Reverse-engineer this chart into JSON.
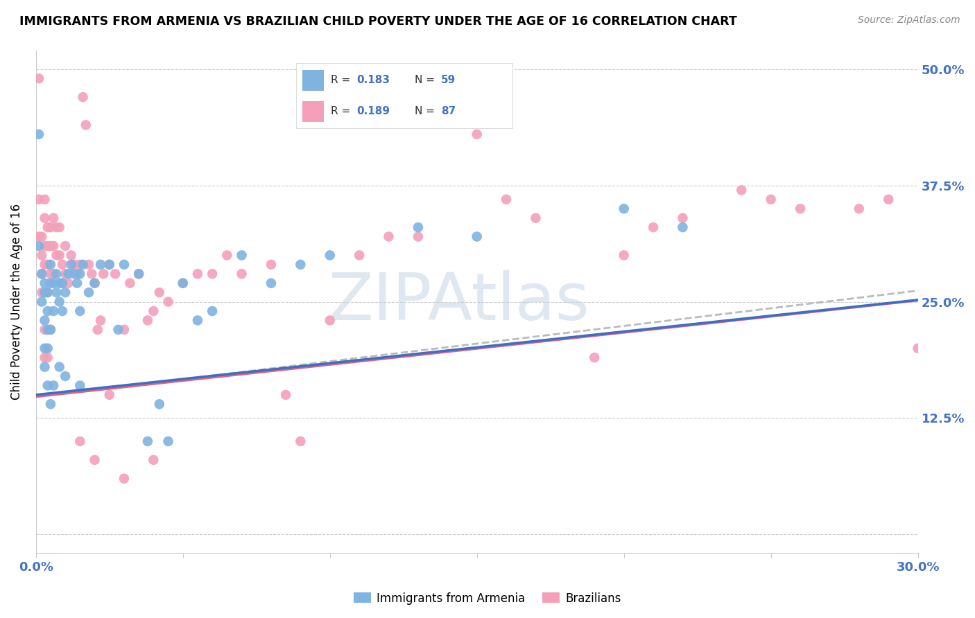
{
  "title": "IMMIGRANTS FROM ARMENIA VS BRAZILIAN CHILD POVERTY UNDER THE AGE OF 16 CORRELATION CHART",
  "source": "Source: ZipAtlas.com",
  "ylabel": "Child Poverty Under the Age of 16",
  "xlim": [
    0.0,
    0.3
  ],
  "ylim": [
    -0.02,
    0.52
  ],
  "color_armenia": "#7fb3e0",
  "color_brazil": "#f4a0ba",
  "color_armenia_line": "#3a6fc4",
  "color_brazil_line": "#e06080",
  "watermark": "ZIPAtlas",
  "watermark_color": "#c8d8e8",
  "legend_r1": "0.183",
  "legend_n1": "59",
  "legend_r2": "0.189",
  "legend_n2": "87",
  "armenia_x": [
    0.001,
    0.001,
    0.002,
    0.002,
    0.003,
    0.003,
    0.003,
    0.003,
    0.004,
    0.004,
    0.004,
    0.004,
    0.005,
    0.005,
    0.005,
    0.006,
    0.006,
    0.007,
    0.007,
    0.008,
    0.008,
    0.009,
    0.009,
    0.01,
    0.011,
    0.012,
    0.013,
    0.014,
    0.015,
    0.015,
    0.016,
    0.018,
    0.02,
    0.022,
    0.025,
    0.028,
    0.03,
    0.035,
    0.038,
    0.042,
    0.045,
    0.05,
    0.055,
    0.06,
    0.07,
    0.08,
    0.09,
    0.1,
    0.13,
    0.15,
    0.2,
    0.22,
    0.003,
    0.004,
    0.005,
    0.006,
    0.008,
    0.01,
    0.015
  ],
  "armenia_y": [
    0.43,
    0.31,
    0.28,
    0.25,
    0.27,
    0.26,
    0.23,
    0.2,
    0.26,
    0.24,
    0.22,
    0.2,
    0.29,
    0.27,
    0.22,
    0.27,
    0.24,
    0.28,
    0.26,
    0.27,
    0.25,
    0.27,
    0.24,
    0.26,
    0.28,
    0.29,
    0.28,
    0.27,
    0.28,
    0.24,
    0.29,
    0.26,
    0.27,
    0.29,
    0.29,
    0.22,
    0.29,
    0.28,
    0.1,
    0.14,
    0.1,
    0.27,
    0.23,
    0.24,
    0.3,
    0.27,
    0.29,
    0.3,
    0.33,
    0.32,
    0.35,
    0.33,
    0.18,
    0.16,
    0.14,
    0.16,
    0.18,
    0.17,
    0.16
  ],
  "brazil_x": [
    0.001,
    0.001,
    0.001,
    0.002,
    0.002,
    0.002,
    0.002,
    0.003,
    0.003,
    0.003,
    0.003,
    0.003,
    0.004,
    0.004,
    0.004,
    0.004,
    0.005,
    0.005,
    0.005,
    0.006,
    0.006,
    0.006,
    0.007,
    0.007,
    0.008,
    0.008,
    0.009,
    0.009,
    0.01,
    0.01,
    0.011,
    0.012,
    0.013,
    0.014,
    0.015,
    0.016,
    0.017,
    0.018,
    0.019,
    0.02,
    0.021,
    0.022,
    0.023,
    0.025,
    0.027,
    0.03,
    0.032,
    0.035,
    0.038,
    0.04,
    0.042,
    0.045,
    0.05,
    0.055,
    0.06,
    0.065,
    0.07,
    0.08,
    0.085,
    0.09,
    0.1,
    0.11,
    0.12,
    0.13,
    0.15,
    0.16,
    0.17,
    0.19,
    0.2,
    0.21,
    0.22,
    0.24,
    0.25,
    0.26,
    0.28,
    0.29,
    0.3,
    0.003,
    0.003,
    0.004,
    0.004,
    0.005,
    0.015,
    0.02,
    0.025,
    0.03,
    0.04
  ],
  "brazil_y": [
    0.49,
    0.36,
    0.32,
    0.32,
    0.3,
    0.28,
    0.26,
    0.36,
    0.34,
    0.31,
    0.29,
    0.26,
    0.33,
    0.31,
    0.29,
    0.26,
    0.33,
    0.31,
    0.28,
    0.34,
    0.31,
    0.28,
    0.33,
    0.3,
    0.33,
    0.3,
    0.29,
    0.27,
    0.31,
    0.28,
    0.27,
    0.3,
    0.29,
    0.28,
    0.29,
    0.47,
    0.44,
    0.29,
    0.28,
    0.27,
    0.22,
    0.23,
    0.28,
    0.29,
    0.28,
    0.22,
    0.27,
    0.28,
    0.23,
    0.24,
    0.26,
    0.25,
    0.27,
    0.28,
    0.28,
    0.3,
    0.28,
    0.29,
    0.15,
    0.1,
    0.23,
    0.3,
    0.32,
    0.32,
    0.43,
    0.36,
    0.34,
    0.19,
    0.3,
    0.33,
    0.34,
    0.37,
    0.36,
    0.35,
    0.35,
    0.36,
    0.2,
    0.22,
    0.19,
    0.22,
    0.19,
    0.22,
    0.1,
    0.08,
    0.15,
    0.06,
    0.08
  ]
}
